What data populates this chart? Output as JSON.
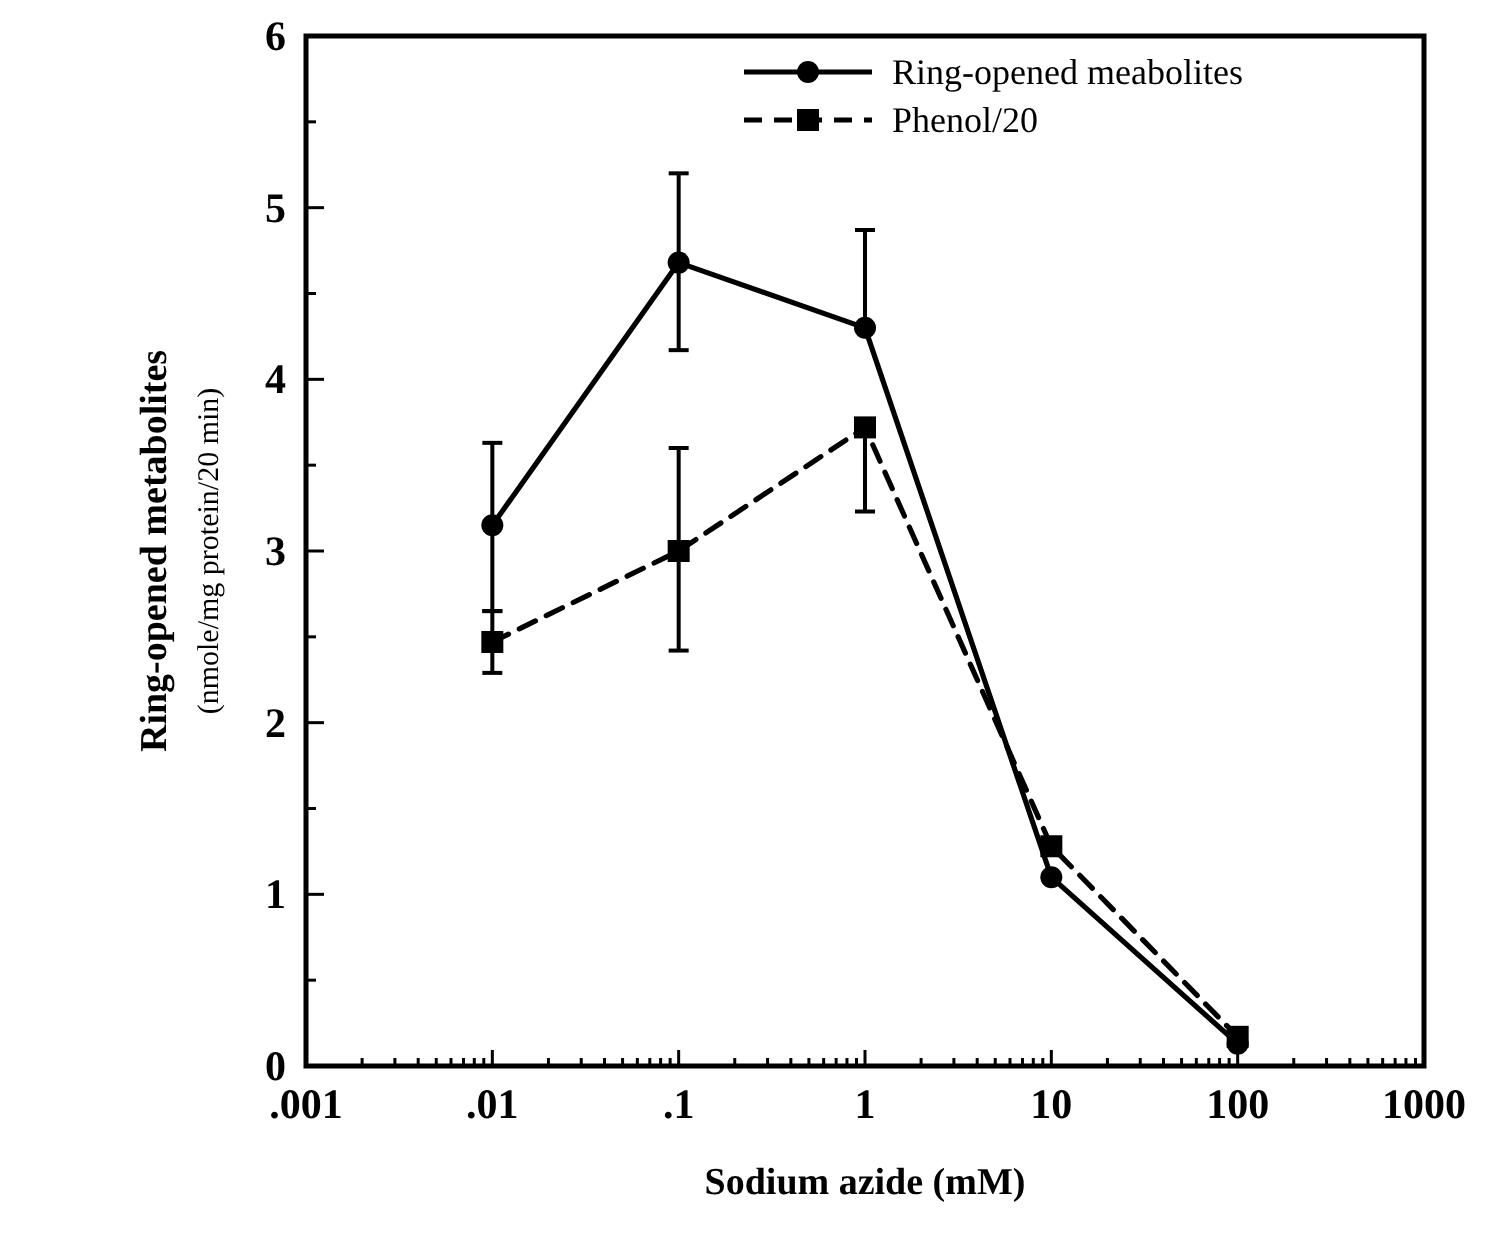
{
  "chart_data": {
    "type": "line",
    "xlabel": "Sodium azide (mM)",
    "ylabel": "Ring-opened  metabolites\n(nmole/mg protein/20 min)",
    "log": "x",
    "x": [
      0.01,
      0.1,
      1,
      10,
      100
    ],
    "series": [
      {
        "name": "Ring-opened meabolites",
        "color": "#000000",
        "marker": "circle",
        "line_style": "solid",
        "values": [
          3.15,
          4.68,
          4.3,
          1.1,
          0.13
        ],
        "errors": [
          [
            2.65,
            3.63
          ],
          [
            4.17,
            5.2
          ],
          [
            4.3,
            4.87
          ],
          null,
          null
        ]
      },
      {
        "name": "Phenol/20",
        "color": "#000000",
        "marker": "square",
        "line_style": "dashed",
        "values": [
          2.47,
          3.0,
          3.72,
          1.28,
          0.17
        ],
        "errors": [
          [
            2.29,
            2.65
          ],
          [
            2.42,
            3.6
          ],
          [
            3.23,
            3.72
          ],
          null,
          null
        ]
      }
    ],
    "xlim": [
      0.001,
      1000
    ],
    "xticks": [
      {
        "value": 0.001,
        "label": ".001"
      },
      {
        "value": 0.002,
        "label": null
      },
      {
        "value": 0.003,
        "label": null
      },
      {
        "value": 0.004,
        "label": null
      },
      {
        "value": 0.005,
        "label": null
      },
      {
        "value": 0.006,
        "label": null
      },
      {
        "value": 0.007,
        "label": null
      },
      {
        "value": 0.008,
        "label": null
      },
      {
        "value": 0.009,
        "label": null
      },
      {
        "value": 0.01,
        "label": ".01"
      },
      {
        "value": 0.02,
        "label": null
      },
      {
        "value": 0.03,
        "label": null
      },
      {
        "value": 0.04,
        "label": null
      },
      {
        "value": 0.05,
        "label": null
      },
      {
        "value": 0.06,
        "label": null
      },
      {
        "value": 0.07,
        "label": null
      },
      {
        "value": 0.08,
        "label": null
      },
      {
        "value": 0.09,
        "label": null
      },
      {
        "value": 0.1,
        "label": ".1"
      },
      {
        "value": 0.2,
        "label": null
      },
      {
        "value": 0.3,
        "label": null
      },
      {
        "value": 0.4,
        "label": null
      },
      {
        "value": 0.5,
        "label": null
      },
      {
        "value": 0.6,
        "label": null
      },
      {
        "value": 0.7,
        "label": null
      },
      {
        "value": 0.8,
        "label": null
      },
      {
        "value": 0.9,
        "label": null
      },
      1,
      {
        "value": 2,
        "label": null
      },
      {
        "value": 3,
        "label": null
      },
      {
        "value": 4,
        "label": null
      },
      {
        "value": 5,
        "label": null
      },
      {
        "value": 6,
        "label": null
      },
      {
        "value": 7,
        "label": null
      },
      {
        "value": 8,
        "label": null
      },
      {
        "value": 9,
        "label": null
      },
      10,
      {
        "value": 20,
        "label": null
      },
      {
        "value": 30,
        "label": null
      },
      {
        "value": 40,
        "label": null
      },
      {
        "value": 50,
        "label": null
      },
      {
        "value": 60,
        "label": null
      },
      {
        "value": 70,
        "label": null
      },
      {
        "value": 80,
        "label": null
      },
      {
        "value": 90,
        "label": null
      },
      100,
      {
        "value": 200,
        "label": null
      },
      {
        "value": 300,
        "label": null
      },
      {
        "value": 400,
        "label": null
      },
      {
        "value": 500,
        "label": null
      },
      {
        "value": 600,
        "label": null
      },
      {
        "value": 700,
        "label": null
      },
      {
        "value": 800,
        "label": null
      },
      {
        "value": 900,
        "label": null
      },
      1000
    ],
    "ylim": [
      0,
      6
    ],
    "yticks": [
      0,
      {
        "value": 0.5,
        "label": null
      },
      1,
      {
        "value": 1.5,
        "label": null
      },
      2,
      {
        "value": 2.5,
        "label": null
      },
      3,
      {
        "value": 3.5,
        "label": null
      },
      4,
      {
        "value": 4.5,
        "label": null
      },
      5,
      {
        "value": 5.5,
        "label": null
      },
      6
    ],
    "grid": false,
    "legend": "top right"
  }
}
